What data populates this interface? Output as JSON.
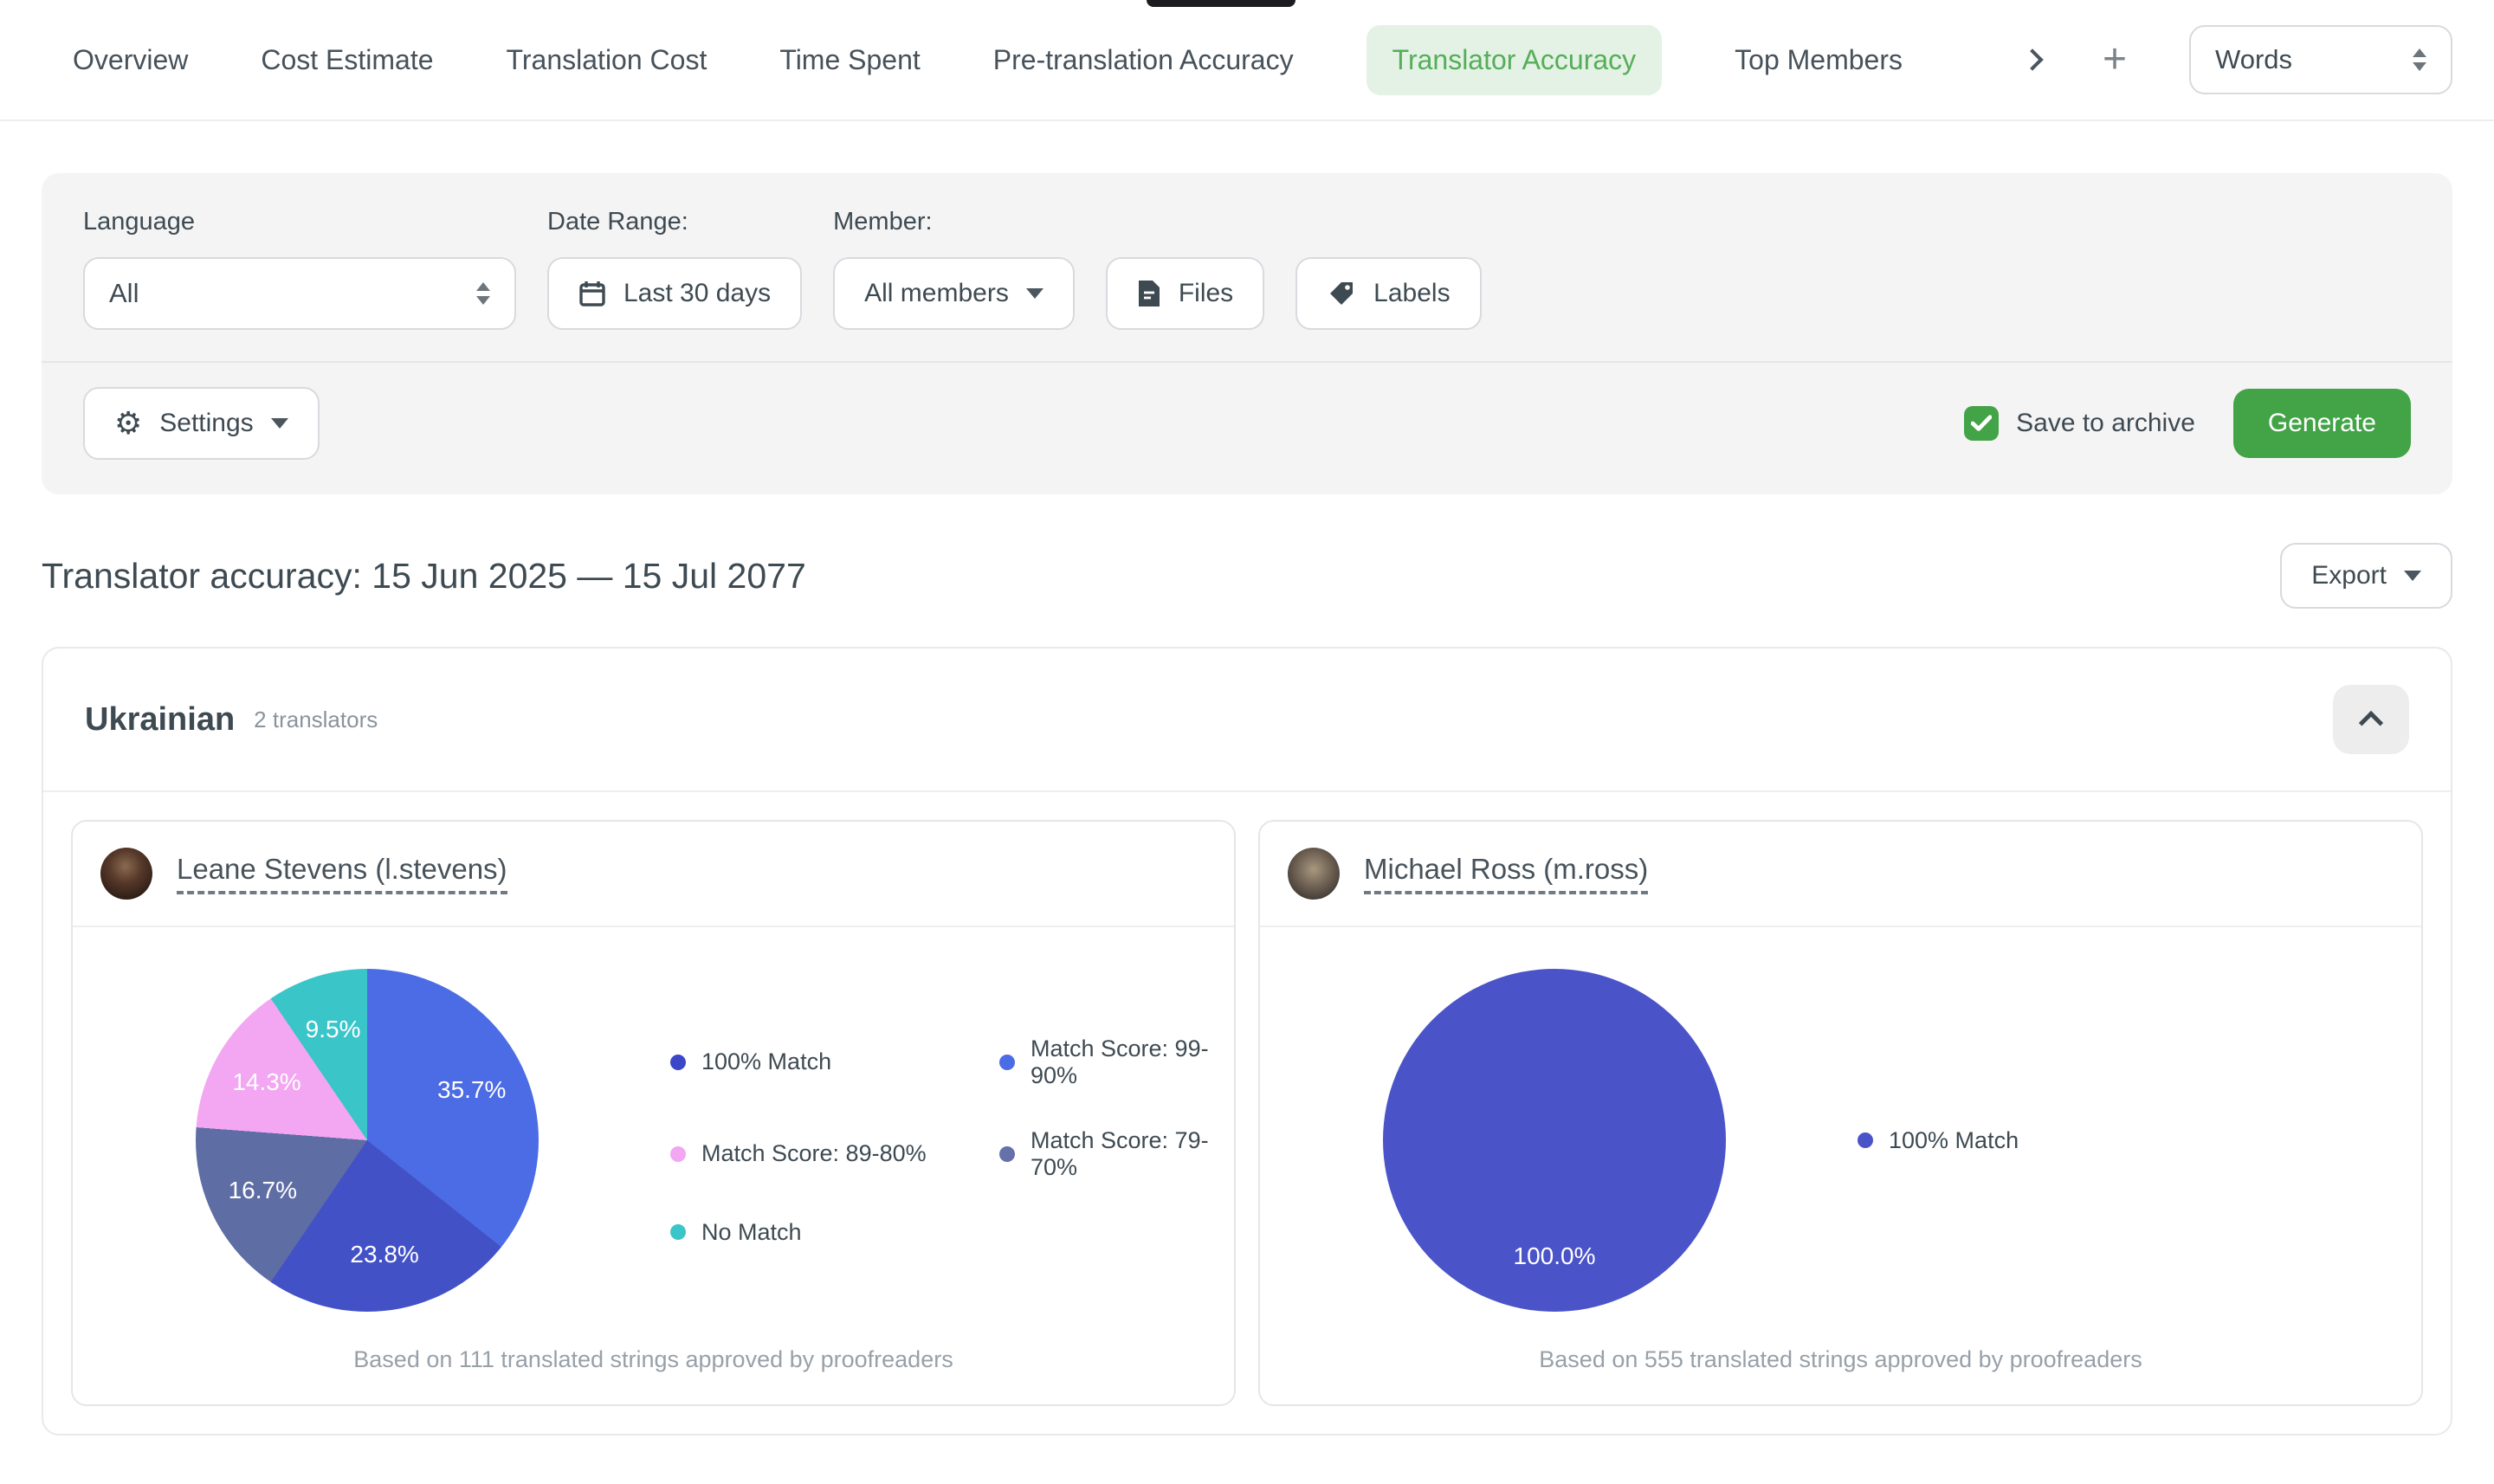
{
  "nav": {
    "tabs": [
      {
        "label": "Overview",
        "active": false
      },
      {
        "label": "Cost Estimate",
        "active": false
      },
      {
        "label": "Translation Cost",
        "active": false
      },
      {
        "label": "Time Spent",
        "active": false
      },
      {
        "label": "Pre-translation Accuracy",
        "active": false
      },
      {
        "label": "Translator Accuracy",
        "active": true
      },
      {
        "label": "Top Members",
        "active": false
      }
    ],
    "plus_glyph": "+",
    "unit_select": {
      "value": "Words"
    }
  },
  "filters": {
    "language": {
      "label": "Language",
      "value": "All"
    },
    "date_range": {
      "label": "Date Range:",
      "value": "Last 30 days"
    },
    "member": {
      "label": "Member:",
      "value": "All members"
    },
    "files_button": "Files",
    "labels_button": "Labels",
    "settings_button": "Settings",
    "settings_glyph": "⚙",
    "save_to_archive": {
      "label": "Save to archive",
      "checked": true
    },
    "generate_button": "Generate"
  },
  "report": {
    "title": "Translator accuracy: 15 Jun 2025 — 15 Jul 2077",
    "export_button": "Export"
  },
  "language_section": {
    "name": "Ukrainian",
    "translators_count": "2 translators",
    "cards": [
      {
        "name": "Leane Stevens (l.stevens)",
        "note": "Based on 111 translated strings approved by proofreaders"
      },
      {
        "name": "Michael Ross (m.ross)",
        "note": "Based on 555 translated strings approved by proofreaders"
      }
    ]
  },
  "chart_data": [
    {
      "type": "pie",
      "title": "Leane Stevens (l.stevens) translator accuracy",
      "slices": [
        {
          "label": "Match Score: 99-90%",
          "value": 35.7,
          "color": "#4b6ce4"
        },
        {
          "label": "100% Match",
          "value": 23.8,
          "color": "#4351c6"
        },
        {
          "label": "Match Score: 79-70%",
          "value": 16.7,
          "color": "#5f6da5"
        },
        {
          "label": "Match Score: 89-80%",
          "value": 14.3,
          "color": "#f3a6f2"
        },
        {
          "label": "No Match",
          "value": 9.5,
          "color": "#3ac5c9"
        }
      ],
      "legend": [
        {
          "label": "100% Match",
          "color": "#3c46c8"
        },
        {
          "label": "Match Score: 99-90%",
          "color": "#4b6ce4"
        },
        {
          "label": "Match Score: 89-80%",
          "color": "#f3a6f2"
        },
        {
          "label": "Match Score: 79-70%",
          "color": "#6571a8"
        },
        {
          "label": "No Match",
          "color": "#3ac5c9"
        }
      ],
      "legend_position": "right",
      "data_labels": "percent"
    },
    {
      "type": "pie",
      "title": "Michael Ross (m.ross) translator accuracy",
      "slices": [
        {
          "label": "100% Match",
          "value": 100.0,
          "color": "#4a54c8"
        }
      ],
      "legend": [
        {
          "label": "100% Match",
          "color": "#4a54c8"
        }
      ],
      "legend_position": "right",
      "data_labels": "percent"
    }
  ],
  "colors": {
    "accent_green": "#43a347",
    "active_tab_bg": "#e3f2e4",
    "active_tab_text": "#56ad5a"
  }
}
